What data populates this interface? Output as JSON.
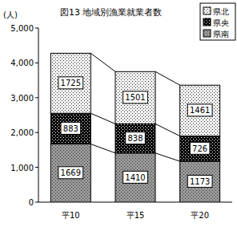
{
  "chart_data": {
    "type": "bar",
    "stacked": true,
    "title": "図13 地域別漁業就業者数",
    "y_label": "(人)",
    "categories": [
      "平10",
      "平15",
      "平20"
    ],
    "series": [
      {
        "name": "県南",
        "color": "#9a9a9a",
        "values": [
          1669,
          1410,
          1173
        ]
      },
      {
        "name": "県央",
        "color": "#000000",
        "values": [
          883,
          838,
          726
        ]
      },
      {
        "name": "県北",
        "color": "#f4f4f4",
        "values": [
          1725,
          1501,
          1461
        ]
      }
    ],
    "ylim": [
      0,
      5000
    ],
    "yticks": [
      0,
      {
        "value": 1000,
        "label": "1,000"
      },
      {
        "value": 2000,
        "label": "2,000"
      },
      {
        "value": 3000,
        "label": "3,000"
      },
      {
        "value": 4000,
        "label": "4,000"
      },
      {
        "value": 5000,
        "label": "5,000"
      }
    ],
    "grid": false,
    "legend": "top-right",
    "data_labels": true
  }
}
